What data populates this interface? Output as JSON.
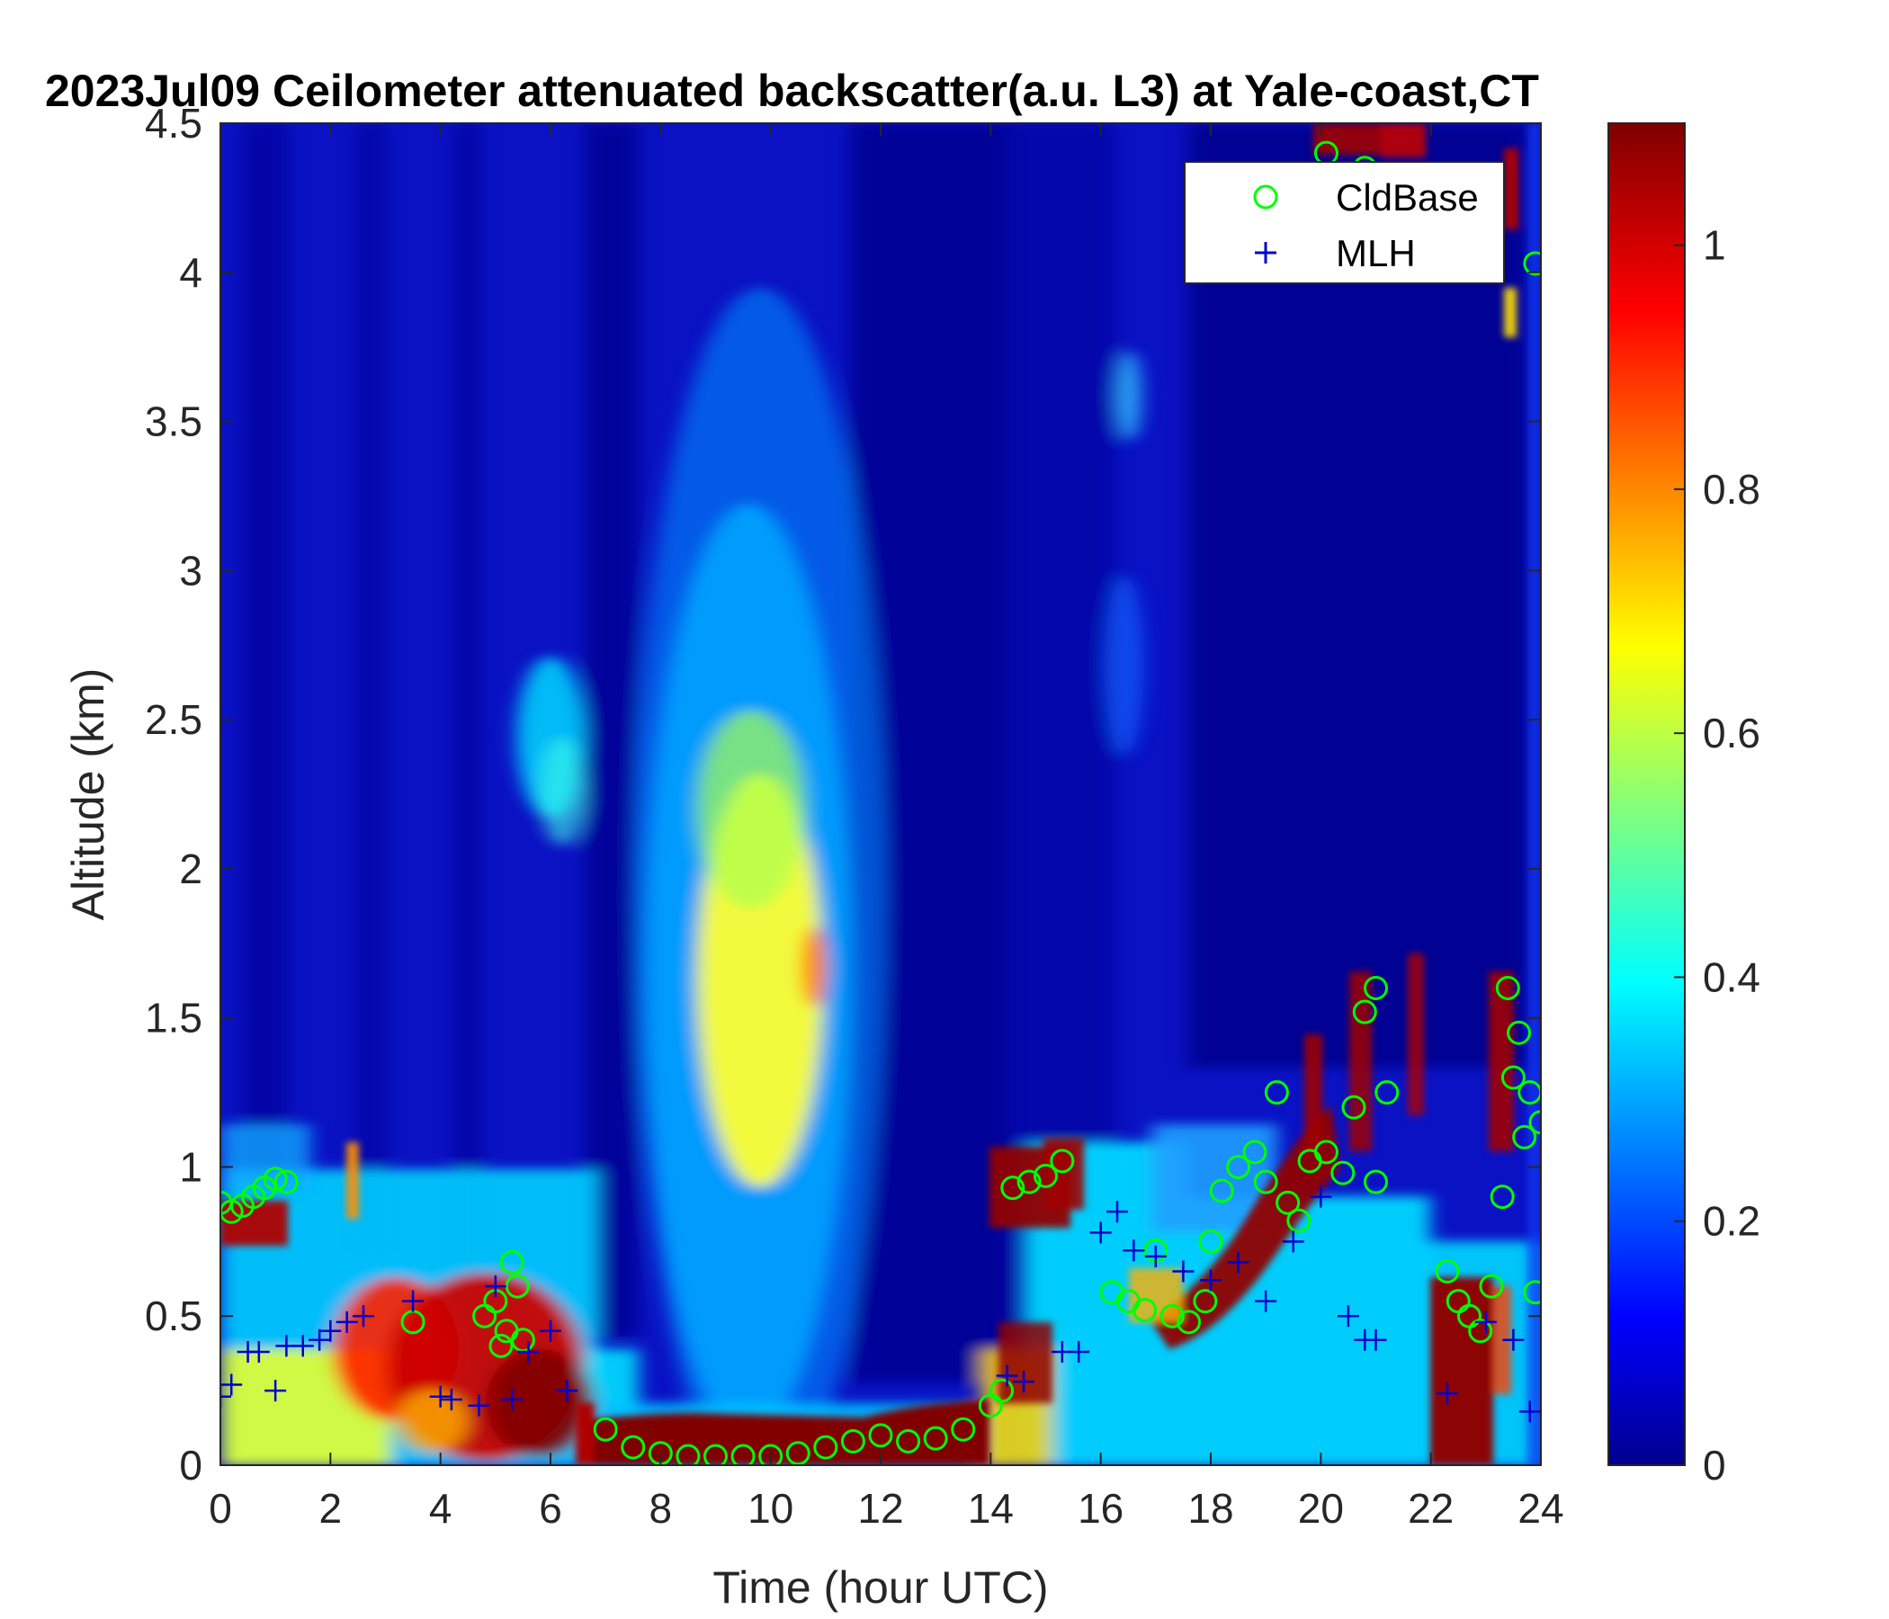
{
  "chart_data": {
    "type": "heatmap",
    "title": "2023Jul09 Ceilometer attenuated backscatter(a.u. L3) at Yale-coast,CT",
    "xlabel": "Time (hour UTC)",
    "ylabel": "Altitude (km)",
    "xlim": [
      0,
      24
    ],
    "ylim": [
      0,
      4.5
    ],
    "xticks": [
      "0",
      "2",
      "4",
      "6",
      "8",
      "10",
      "12",
      "14",
      "16",
      "18",
      "20",
      "22",
      "24"
    ],
    "yticks": [
      "0",
      "0.5",
      "1",
      "1.5",
      "2",
      "2.5",
      "3",
      "3.5",
      "4",
      "4.5"
    ],
    "colorbar": {
      "colormap": "jet",
      "range": [
        0,
        1.1
      ],
      "ticks": [
        "0",
        "0.2",
        "0.4",
        "0.6",
        "0.8",
        "1"
      ]
    },
    "legend": {
      "placement": "top-right",
      "entries": [
        {
          "name": "CldBase",
          "marker": "circle",
          "color": "#00ff00"
        },
        {
          "name": "MLH",
          "marker": "plus",
          "color": "#0000cd"
        }
      ]
    },
    "series": [
      {
        "name": "CldBase",
        "x": [
          0.0,
          0.2,
          0.4,
          0.6,
          0.8,
          1.0,
          1.2,
          3.5,
          4.8,
          5.0,
          5.2,
          5.4,
          5.5,
          5.3,
          5.1,
          7.0,
          7.5,
          8.0,
          8.5,
          9.0,
          9.5,
          10.0,
          10.5,
          11.0,
          11.5,
          12.0,
          12.5,
          13.0,
          13.5,
          14.0,
          14.2,
          14.4,
          14.7,
          15.0,
          15.3,
          16.2,
          16.5,
          16.8,
          17.0,
          17.3,
          17.6,
          17.9,
          18.0,
          18.2,
          18.5,
          18.8,
          19.0,
          19.2,
          19.4,
          19.6,
          19.8,
          20.1,
          20.4,
          20.6,
          20.8,
          21.0,
          21.2,
          21.0,
          22.3,
          22.5,
          22.7,
          22.9,
          23.1,
          23.3,
          23.4,
          23.5,
          23.6,
          23.7,
          23.8,
          23.9,
          24.0,
          20.1,
          20.8,
          23.9
        ],
        "y": [
          0.88,
          0.85,
          0.87,
          0.9,
          0.93,
          0.96,
          0.95,
          0.48,
          0.5,
          0.55,
          0.45,
          0.6,
          0.42,
          0.68,
          0.4,
          0.12,
          0.06,
          0.04,
          0.03,
          0.03,
          0.03,
          0.03,
          0.04,
          0.06,
          0.08,
          0.1,
          0.08,
          0.09,
          0.12,
          0.2,
          0.25,
          0.93,
          0.95,
          0.97,
          1.02,
          0.58,
          0.55,
          0.52,
          0.72,
          0.5,
          0.48,
          0.55,
          0.75,
          0.92,
          1.0,
          1.05,
          0.95,
          1.25,
          0.88,
          0.82,
          1.02,
          1.05,
          0.98,
          1.2,
          1.52,
          1.6,
          1.25,
          0.95,
          0.65,
          0.55,
          0.5,
          0.45,
          0.6,
          0.9,
          1.6,
          1.3,
          1.45,
          1.1,
          1.25,
          0.58,
          1.15,
          4.4,
          4.35,
          4.03
        ]
      },
      {
        "name": "MLH",
        "x": [
          0.0,
          0.2,
          0.5,
          0.7,
          1.0,
          1.2,
          1.5,
          1.8,
          2.0,
          2.3,
          2.6,
          3.5,
          4.0,
          4.2,
          4.7,
          5.0,
          5.3,
          5.6,
          6.0,
          6.3,
          14.3,
          14.6,
          15.3,
          15.6,
          16.0,
          16.3,
          16.6,
          17.0,
          17.5,
          18.0,
          18.5,
          19.0,
          19.5,
          20.0,
          20.5,
          20.8,
          21.0,
          22.3,
          23.0,
          23.5,
          23.8
        ],
        "y": [
          0.23,
          0.27,
          0.38,
          0.38,
          0.25,
          0.4,
          0.4,
          0.42,
          0.45,
          0.48,
          0.5,
          0.55,
          0.23,
          0.22,
          0.2,
          0.6,
          0.22,
          0.38,
          0.45,
          0.25,
          0.3,
          0.28,
          0.38,
          0.38,
          0.78,
          0.85,
          0.72,
          0.7,
          0.65,
          0.62,
          0.68,
          0.55,
          0.75,
          0.9,
          0.5,
          0.42,
          0.42,
          0.24,
          0.48,
          0.42,
          0.18
        ]
      }
    ]
  }
}
